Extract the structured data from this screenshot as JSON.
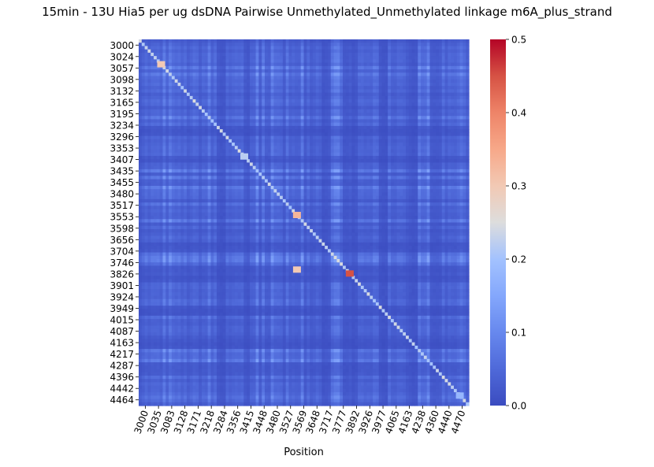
{
  "chart_data": {
    "type": "heatmap",
    "title": "15min - 13U Hia5 per ug dsDNA Pairwise Unmethylated_Unmethylated linkage m6A_plus_strand",
    "xlabel": "Position",
    "ylabel": "",
    "y_tick_labels": [
      "3000",
      "3024",
      "3057",
      "3098",
      "3132",
      "3165",
      "3195",
      "3234",
      "3296",
      "3353",
      "3407",
      "3435",
      "3455",
      "3480",
      "3517",
      "3553",
      "3598",
      "3656",
      "3704",
      "3746",
      "3826",
      "3901",
      "3924",
      "3949",
      "4015",
      "4087",
      "4163",
      "4217",
      "4287",
      "4396",
      "4442",
      "4464"
    ],
    "x_tick_labels": [
      "3000",
      "3035",
      "3083",
      "3128",
      "3171",
      "3218",
      "3284",
      "3356",
      "3415",
      "3448",
      "3480",
      "3527",
      "3569",
      "3648",
      "3717",
      "3777",
      "3892",
      "3926",
      "3977",
      "4065",
      "4163",
      "4238",
      "4360",
      "4440",
      "4470"
    ],
    "position_range": [
      3000,
      4470
    ],
    "colorbar": {
      "colormap": "coolwarm",
      "min": 0.0,
      "max": 0.5,
      "tick_labels": [
        "0.0",
        "0.1",
        "0.2",
        "0.3",
        "0.4",
        "0.5"
      ],
      "color_low": "#3b4cc0",
      "color_mid": "#dddddd",
      "color_high": "#b40426"
    },
    "background_value": 0.04,
    "diagonal_value": 0.2,
    "hotspots": [
      {
        "x": 3705,
        "y": 3705,
        "value": 0.33
      },
      {
        "x": 3940,
        "y": 3940,
        "value": 0.45
      },
      {
        "x": 3705,
        "y": 3924,
        "value": 0.3
      },
      {
        "x": 3100,
        "y": 3100,
        "value": 0.3
      },
      {
        "x": 3470,
        "y": 3470,
        "value": 0.22
      },
      {
        "x": 4430,
        "y": 4430,
        "value": 0.18
      }
    ]
  }
}
